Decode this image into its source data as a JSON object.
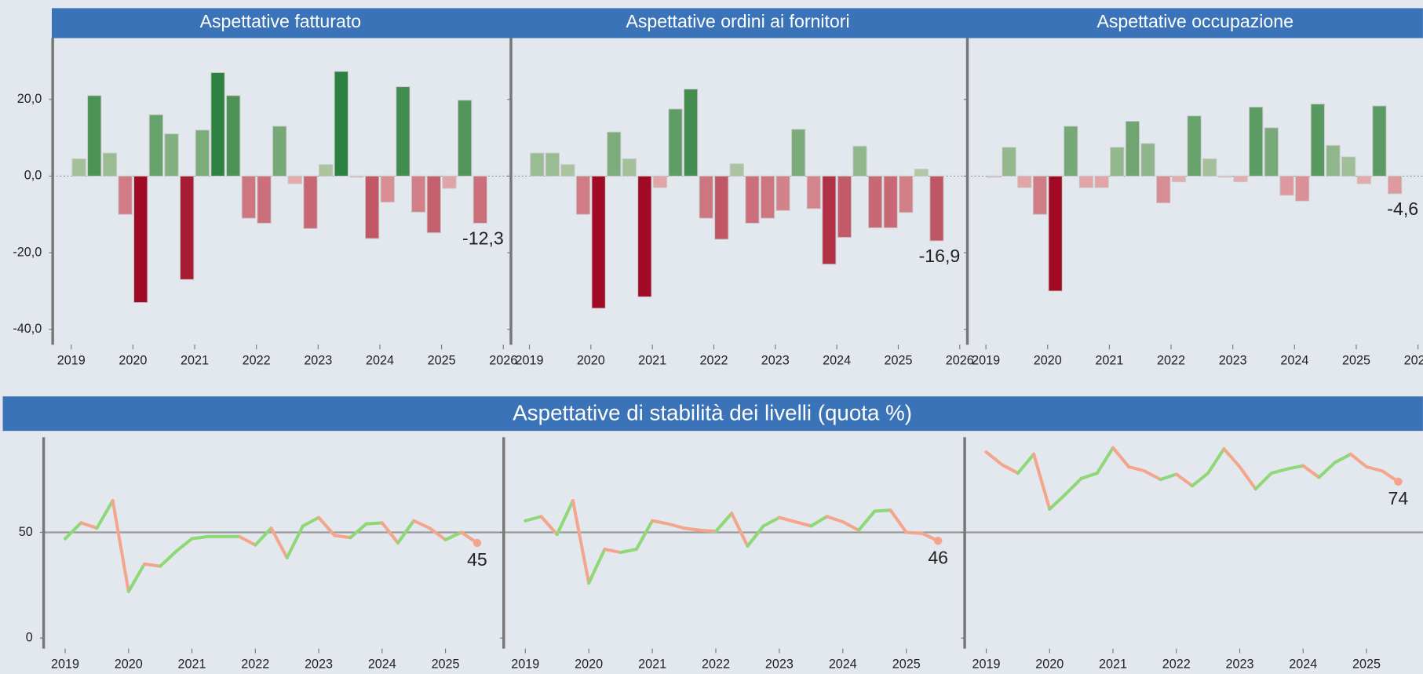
{
  "chart_data": [
    {
      "type": "bar",
      "xlim": [
        2018.7,
        2026.08
      ],
      "xticks": [
        2019,
        2020,
        2021,
        2022,
        2023,
        2024,
        2025,
        2026
      ],
      "ylim": [
        -44,
        36
      ],
      "yticks": [
        {
          "value": -40,
          "label": "-40,0"
        },
        {
          "value": -20,
          "label": "-20,0"
        },
        {
          "value": 0,
          "label": "0,0"
        },
        {
          "value": 20,
          "label": "20,0"
        }
      ],
      "zero_line": true,
      "colors": {
        "positive": [
          "#b9cdaa",
          "#1f7a35"
        ],
        "negative": [
          "#e9b5b5",
          "#a00a24"
        ]
      },
      "x": [
        2019.125,
        2019.375,
        2019.625,
        2019.875,
        2020.125,
        2020.375,
        2020.625,
        2020.875,
        2021.125,
        2021.375,
        2021.625,
        2021.875,
        2022.125,
        2022.375,
        2022.625,
        2022.875,
        2023.125,
        2023.375,
        2023.625,
        2023.875,
        2024.125,
        2024.375,
        2024.625,
        2024.875,
        2025.125,
        2025.375,
        2025.625
      ],
      "panels": [
        {
          "title": "Aspettative  fatturato",
          "values": [
            4.5,
            21,
            6,
            -10,
            -33,
            16,
            11,
            -27,
            12,
            27,
            21,
            -11,
            -12.3,
            13,
            -2,
            -13.7,
            3,
            27.3,
            -0.3,
            -16.3,
            -6.8,
            23.3,
            -9.4,
            -14.8,
            -3.2,
            19.8,
            -12.3
          ],
          "value_labels": [
            null,
            null,
            null,
            null,
            null,
            null,
            null,
            null,
            null,
            null,
            null,
            null,
            null,
            null,
            null,
            null,
            null,
            null,
            null,
            null,
            null,
            null,
            null,
            null,
            null,
            null,
            "-12,3"
          ]
        },
        {
          "title": "Aspettative ordini ai fornitori",
          "values": [
            6,
            6,
            3,
            -10,
            -34.5,
            11.5,
            4.5,
            -31.5,
            -3,
            17.5,
            22.7,
            -11,
            -16.5,
            3.2,
            -12.3,
            -11,
            -9,
            12.2,
            -8.5,
            -23,
            -16,
            7.8,
            -13.5,
            -13.5,
            -9.5,
            1.8,
            -16.9
          ],
          "value_labels": [
            null,
            null,
            null,
            null,
            null,
            null,
            null,
            null,
            null,
            null,
            null,
            null,
            null,
            null,
            null,
            null,
            null,
            null,
            null,
            null,
            null,
            null,
            null,
            null,
            null,
            null,
            "-16,9"
          ]
        },
        {
          "title": "Aspettative occupazione",
          "values": [
            -0.3,
            7.5,
            -3,
            -10,
            -30,
            13,
            -3,
            -3,
            7.5,
            14.3,
            8.5,
            -7,
            -1.5,
            15.7,
            4.5,
            -0.3,
            -1.5,
            18,
            12.6,
            -5,
            -6.5,
            18.8,
            8,
            5,
            -2,
            18.3,
            -4.6
          ],
          "value_labels": [
            null,
            null,
            null,
            null,
            null,
            null,
            null,
            null,
            null,
            null,
            null,
            null,
            null,
            null,
            null,
            null,
            null,
            null,
            null,
            null,
            null,
            null,
            null,
            null,
            null,
            null,
            "-4,6"
          ]
        }
      ]
    },
    {
      "type": "line",
      "title": "Aspettative di stabilità dei livelli (quota %)",
      "xlim": [
        2018.66,
        2025.89
      ],
      "xticks": [
        2019,
        2020,
        2021,
        2022,
        2023,
        2024,
        2025
      ],
      "ylim": [
        -5,
        95
      ],
      "yticks": [
        0,
        50
      ],
      "reference_line": 50,
      "colors": {
        "rise": "#8fd877",
        "fall": "#f3a68c",
        "end_dot": "#f4a48c"
      },
      "x": [
        2019,
        2019.25,
        2019.5,
        2019.75,
        2020,
        2020.25,
        2020.5,
        2020.75,
        2021,
        2021.25,
        2021.5,
        2021.75,
        2022,
        2022.25,
        2022.5,
        2022.75,
        2023,
        2023.25,
        2023.5,
        2023.75,
        2024,
        2024.25,
        2024.5,
        2024.75,
        2025,
        2025.25,
        2025.5
      ],
      "panels": [
        {
          "values": [
            47,
            54.5,
            52,
            65,
            22,
            35,
            34,
            41,
            47,
            48,
            48,
            48,
            44,
            52,
            38,
            53,
            57,
            48.5,
            47.5,
            54,
            54.5,
            45,
            55.5,
            52,
            46.5,
            50,
            45
          ]
        },
        {
          "values": [
            55.5,
            57.5,
            49,
            65,
            26,
            42,
            40.5,
            42,
            55.5,
            54,
            52,
            51,
            50.5,
            59,
            43.5,
            53,
            57,
            55,
            53,
            57.5,
            55,
            51,
            60,
            60.5,
            50,
            49.5,
            46
          ]
        },
        {
          "values": [
            88,
            82,
            78,
            87,
            61,
            68,
            75.5,
            78,
            90,
            81,
            79,
            75,
            77.5,
            72,
            78,
            89.5,
            81,
            70.5,
            78,
            80,
            81.5,
            76,
            83,
            87,
            81,
            79,
            74
          ]
        }
      ]
    }
  ]
}
